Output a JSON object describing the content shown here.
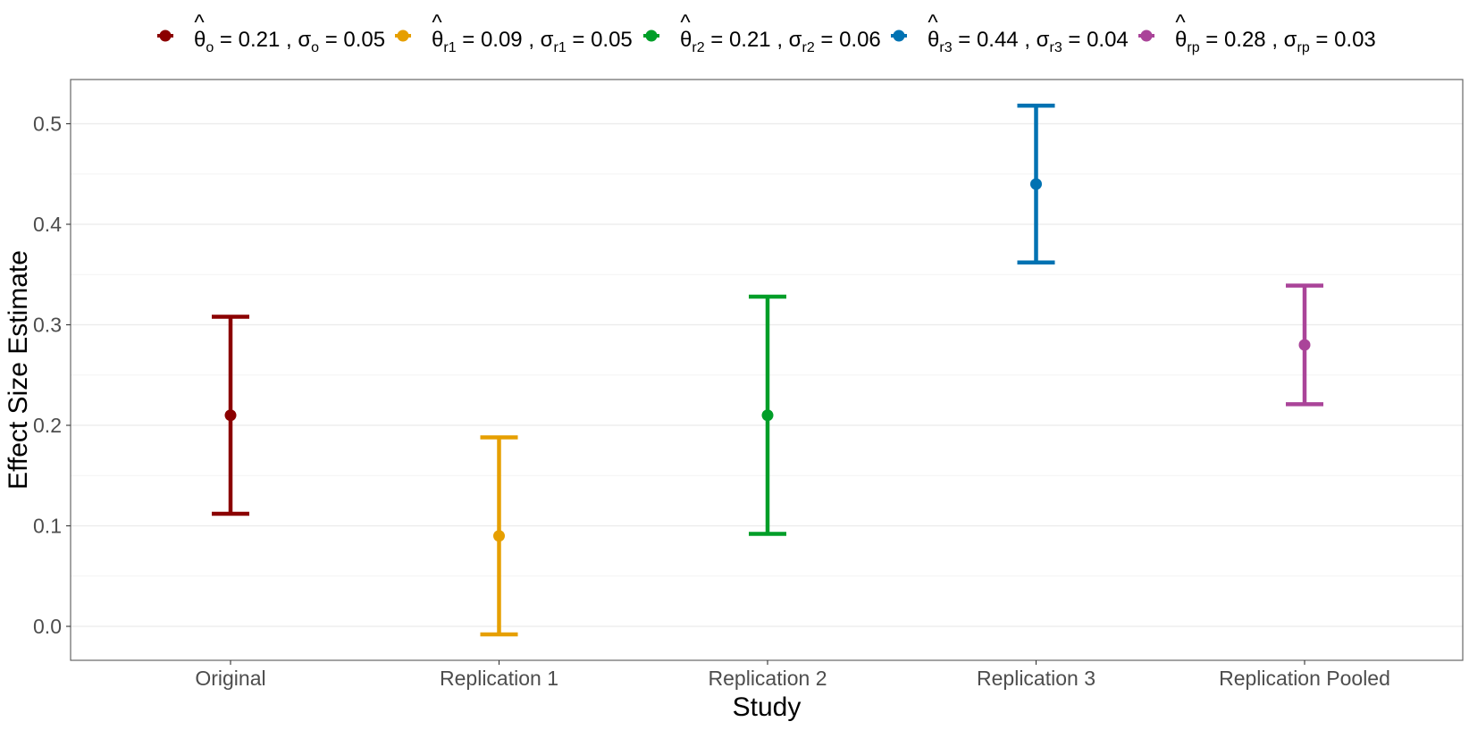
{
  "chart_data": {
    "type": "errorbar",
    "xlabel": "Study",
    "ylabel": "Effect Size Estimate",
    "ylim": [
      -0.035,
      0.545
    ],
    "y_ticks": [
      "0.0",
      "0.1",
      "0.2",
      "0.3",
      "0.4",
      "0.5"
    ],
    "grid": true,
    "legend_position": "top",
    "categories": [
      "Original",
      "Replication 1",
      "Replication 2",
      "Replication 3",
      "Replication Pooled"
    ],
    "series": [
      {
        "category": "Original",
        "estimate": 0.21,
        "lower": 0.112,
        "upper": 0.308,
        "color": "#8B0000",
        "legend": {
          "theta_sub": "o",
          "theta_value": "0.21",
          "sigma_sub": "o",
          "sigma_value": "0.05"
        }
      },
      {
        "category": "Replication 1",
        "estimate": 0.09,
        "lower": -0.008,
        "upper": 0.188,
        "color": "#E69F00",
        "legend": {
          "theta_sub": "r1",
          "theta_value": "0.09",
          "sigma_sub": "r1",
          "sigma_value": "0.05"
        }
      },
      {
        "category": "Replication 2",
        "estimate": 0.21,
        "lower": 0.092,
        "upper": 0.328,
        "color": "#009E28",
        "legend": {
          "theta_sub": "r2",
          "theta_value": "0.21",
          "sigma_sub": "r2",
          "sigma_value": "0.06"
        }
      },
      {
        "category": "Replication 3",
        "estimate": 0.44,
        "lower": 0.362,
        "upper": 0.518,
        "color": "#0072B2",
        "legend": {
          "theta_sub": "r3",
          "theta_value": "0.44",
          "sigma_sub": "r3",
          "sigma_value": "0.04"
        }
      },
      {
        "category": "Replication Pooled",
        "estimate": 0.28,
        "lower": 0.221,
        "upper": 0.339,
        "color": "#AA4499",
        "legend": {
          "theta_sub": "rp",
          "theta_value": "0.28",
          "sigma_sub": "rp",
          "sigma_value": "0.03"
        }
      }
    ]
  }
}
